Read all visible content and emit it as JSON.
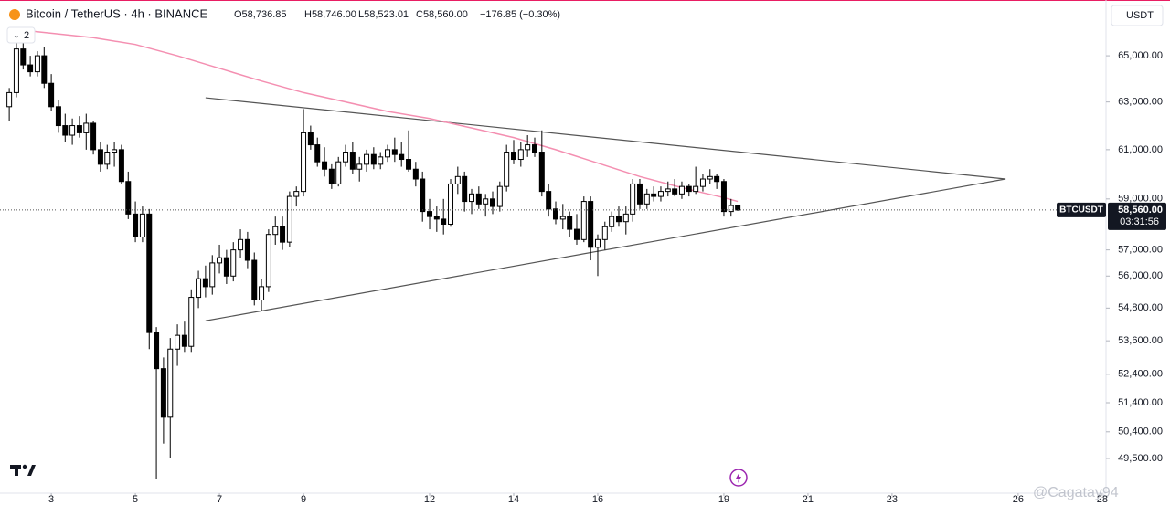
{
  "chart_data": {
    "type": "candlestick",
    "header": {
      "symbol": "Bitcoin / TetherUS · 4h · BINANCE",
      "open": "O58,736.85",
      "high": "H58,746.00",
      "low": "L58,523.01",
      "close": "C58,560.00",
      "change": "−176.85 (−0.30%)"
    },
    "currency": "USDT",
    "indicator_count": "2",
    "ticker": "BTCUSDT",
    "last_price": "58,560.00",
    "countdown": "03:31:56",
    "watermark": "@Cagatay94",
    "log_scale": true,
    "up_color": "#ffffff",
    "down_color": "#000000",
    "x": [
      2,
      2.17,
      2.33,
      2.5,
      2.67,
      2.83,
      3,
      3.17,
      3.33,
      3.5,
      3.67,
      3.83,
      4,
      4.17,
      4.33,
      4.5,
      4.67,
      4.83,
      5,
      5.17,
      5.33,
      5.5,
      5.67,
      5.83,
      6,
      6.17,
      6.33,
      6.5,
      6.67,
      6.83,
      7,
      7.17,
      7.33,
      7.5,
      7.67,
      7.83,
      8,
      8.17,
      8.33,
      8.5,
      8.67,
      8.83,
      9,
      9.17,
      9.33,
      9.5,
      9.67,
      9.83,
      10,
      10.17,
      10.33,
      10.5,
      10.67,
      10.83,
      11,
      11.17,
      11.33,
      11.5,
      11.67,
      11.83,
      12,
      12.17,
      12.33,
      12.5,
      12.67,
      12.83,
      13,
      13.17,
      13.33,
      13.5,
      13.67,
      13.83,
      14,
      14.17,
      14.33,
      14.5,
      14.67,
      14.83,
      15,
      15.17,
      15.33,
      15.5,
      15.67,
      15.83,
      16,
      16.17,
      16.33,
      16.5,
      16.67,
      16.83,
      17,
      17.17,
      17.33,
      17.5,
      17.67,
      17.83,
      18,
      18.17,
      18.33,
      18.5,
      18.67,
      18.83,
      19,
      19.17,
      19.33
    ],
    "open": [
      62800,
      63400,
      65300,
      64600,
      64300,
      65000,
      63800,
      62800,
      62000,
      61600,
      62000,
      61700,
      62100,
      61000,
      60400,
      60900,
      61000,
      59700,
      58400,
      57500,
      58400,
      53900,
      52600,
      50900,
      53300,
      53800,
      53400,
      55200,
      55900,
      55600,
      56500,
      56700,
      56000,
      57000,
      57400,
      56600,
      55100,
      55600,
      57600,
      57900,
      57300,
      59100,
      59300,
      61700,
      61200,
      60500,
      60200,
      59600,
      60500,
      60900,
      60200,
      60400,
      60800,
      60400,
      60700,
      61000,
      60800,
      60600,
      60200,
      59800,
      58500,
      58300,
      58200,
      58000,
      59600,
      59900,
      58900,
      59200,
      58800,
      59000,
      58700,
      59500,
      60900,
      60600,
      61000,
      61200,
      60900,
      59300,
      58600,
      58200,
      58300,
      57800,
      57400,
      58900,
      57100,
      57400,
      57900,
      58300,
      58100,
      58400,
      59600,
      58800,
      59200,
      59100,
      59300,
      59400,
      59200,
      59500,
      59300,
      59500,
      59800,
      59900,
      59700,
      58500,
      58736.85
    ],
    "high": [
      63600,
      65600,
      65800,
      65000,
      65200,
      65400,
      64200,
      63100,
      62500,
      62300,
      62400,
      62500,
      62200,
      61300,
      61200,
      61300,
      61200,
      60100,
      58900,
      58700,
      58600,
      54100,
      53000,
      53700,
      54200,
      54300,
      55500,
      56200,
      56400,
      56800,
      57200,
      57000,
      57300,
      57800,
      57700,
      56900,
      55900,
      57800,
      58300,
      58300,
      59300,
      59500,
      62700,
      62000,
      61500,
      61100,
      60400,
      60700,
      61200,
      61300,
      60700,
      61000,
      61100,
      60900,
      61200,
      61500,
      61300,
      61800,
      60500,
      60100,
      59000,
      58700,
      59000,
      59800,
      60300,
      60100,
      59400,
      59500,
      59200,
      59300,
      59700,
      61200,
      61400,
      61300,
      61600,
      61500,
      61800,
      59600,
      58900,
      58800,
      58500,
      58400,
      59100,
      59100,
      57600,
      58100,
      58500,
      58700,
      58700,
      59800,
      59800,
      59400,
      59500,
      59500,
      59700,
      59800,
      59700,
      59600,
      60300,
      60000,
      60200,
      60000,
      59800,
      59000,
      58746
    ],
    "low": [
      62200,
      63200,
      64400,
      64100,
      64100,
      63600,
      62600,
      61700,
      61300,
      61200,
      61500,
      61000,
      60800,
      60100,
      60200,
      60300,
      59600,
      58200,
      57300,
      57300,
      53300,
      48800,
      50000,
      49500,
      52700,
      53200,
      53200,
      54800,
      55200,
      55300,
      56100,
      55700,
      55800,
      56700,
      56300,
      54900,
      54700,
      55400,
      57200,
      57000,
      57100,
      58700,
      59100,
      61000,
      60300,
      59900,
      59400,
      59500,
      60300,
      60000,
      59700,
      60100,
      60200,
      60200,
      60500,
      60500,
      60300,
      60100,
      59500,
      58100,
      57800,
      57700,
      57600,
      57900,
      59200,
      58500,
      58400,
      58600,
      58300,
      58400,
      58500,
      59300,
      60400,
      60300,
      60700,
      60700,
      59100,
      58300,
      58000,
      57800,
      57500,
      57200,
      57300,
      56600,
      56000,
      57000,
      57700,
      57900,
      57600,
      58100,
      58600,
      58600,
      58900,
      58900,
      59100,
      59100,
      59000,
      59100,
      59200,
      59300,
      59600,
      59400,
      58300,
      58300,
      58523.01
    ],
    "close": [
      63400,
      65300,
      64600,
      64300,
      65000,
      63800,
      62800,
      62000,
      61600,
      62000,
      61700,
      62100,
      61000,
      60400,
      60900,
      61000,
      59700,
      58400,
      57500,
      58400,
      53900,
      52600,
      50900,
      53300,
      53800,
      53400,
      55200,
      55900,
      55600,
      56500,
      56700,
      56000,
      57000,
      57400,
      56600,
      55100,
      55600,
      57600,
      57900,
      57300,
      59100,
      59300,
      61700,
      61200,
      60500,
      60200,
      59600,
      60500,
      60900,
      60200,
      60400,
      60800,
      60400,
      60700,
      61000,
      60800,
      60600,
      60200,
      59800,
      58500,
      58300,
      58200,
      58000,
      59600,
      59900,
      58900,
      59200,
      58800,
      59000,
      58700,
      59500,
      60900,
      60600,
      61000,
      61200,
      60900,
      59300,
      58600,
      58200,
      58300,
      57800,
      57400,
      58900,
      57100,
      57400,
      57900,
      58300,
      58100,
      58400,
      59600,
      58800,
      59200,
      59100,
      59300,
      59400,
      59200,
      59500,
      59300,
      59500,
      59800,
      59900,
      59700,
      58500,
      58736.85,
      58560
    ],
    "ma": {
      "color": "#f48fb1",
      "x": [
        2,
        3,
        4,
        5,
        6,
        7,
        8,
        9,
        10,
        11,
        12,
        13,
        14,
        15,
        16,
        17,
        18,
        19,
        19.33
      ],
      "values": [
        66200,
        66000,
        65800,
        65500,
        65000,
        64450,
        63900,
        63400,
        63000,
        62600,
        62300,
        61900,
        61500,
        61000,
        60450,
        59900,
        59450,
        59050,
        58900
      ]
    },
    "trendlines": [
      {
        "color": "#555555",
        "x": [
          6.67,
          25.7
        ],
        "y": [
          63180,
          59800
        ]
      },
      {
        "color": "#555555",
        "x": [
          6.67,
          25.7
        ],
        "y": [
          54330,
          59800
        ]
      }
    ],
    "xlim": [
      1.78,
      28.09
    ],
    "ylim": [
      48350,
      67500
    ],
    "xticks": [
      3,
      5,
      7,
      9,
      12,
      14,
      16,
      19,
      21,
      23,
      26,
      28
    ],
    "yticks": [
      {
        "value": 65000,
        "label": "65,000.00"
      },
      {
        "value": 63000,
        "label": "63,000.00"
      },
      {
        "value": 61000,
        "label": "61,000.00"
      },
      {
        "value": 59000,
        "label": "59,000.00"
      },
      {
        "value": 57000,
        "label": "57,000.00"
      },
      {
        "value": 56000,
        "label": "56,000.00"
      },
      {
        "value": 54800,
        "label": "54,800.00"
      },
      {
        "value": 53600,
        "label": "53,600.00"
      },
      {
        "value": 52400,
        "label": "52,400.00"
      },
      {
        "value": 51400,
        "label": "51,400.00"
      },
      {
        "value": 50400,
        "label": "50,400.00"
      },
      {
        "value": 49500,
        "label": "49,500.00"
      }
    ]
  }
}
